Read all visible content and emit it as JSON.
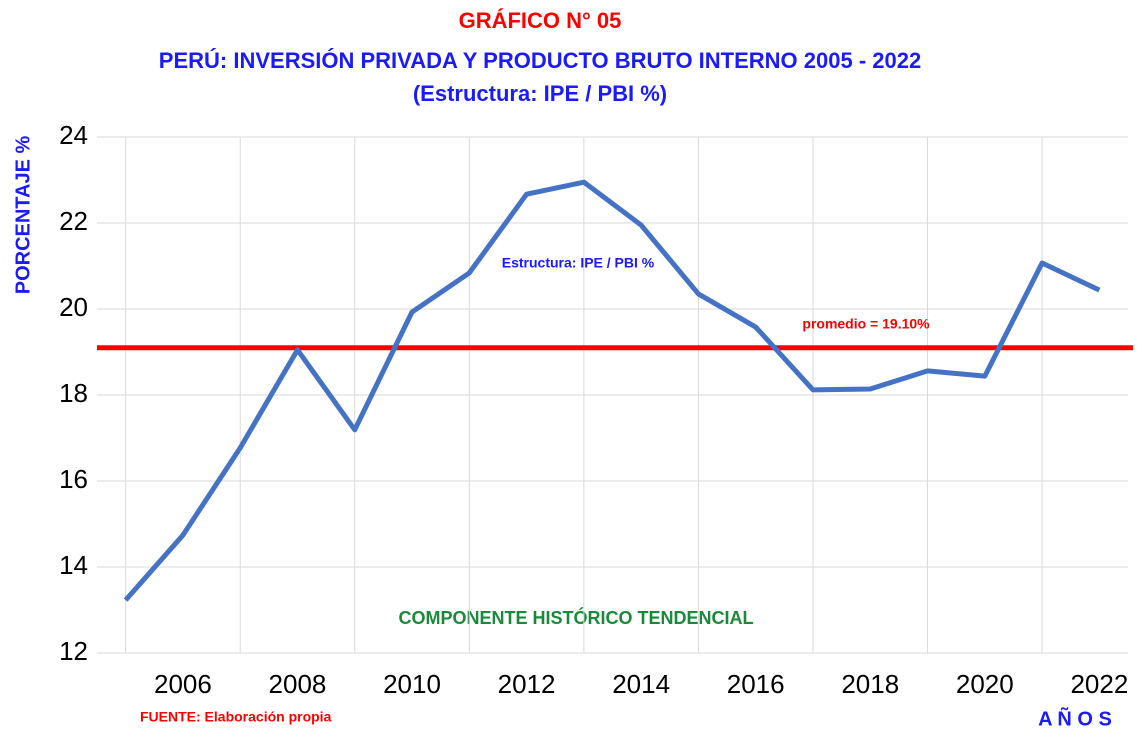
{
  "chart_data": {
    "type": "line",
    "title": "GRÁFICO N° 05",
    "subtitle": [
      "PERÚ: INVERSIÓN PRIVADA Y  PRODUCTO BRUTO INTERNO 2005 - 2022",
      "(Estructura: IPE / PBI %)"
    ],
    "y_label": "PORCENTAJE %",
    "x_label": "A Ñ O S",
    "source": "FUENTE: Elaboración propia",
    "annotation": "COMPONENTE HISTÓRICO TENDENCIAL",
    "x": [
      2005,
      2006,
      2007,
      2008,
      2009,
      2010,
      2011,
      2012,
      2013,
      2014,
      2015,
      2016,
      2017,
      2018,
      2019,
      2020,
      2021,
      2022
    ],
    "series": [
      {
        "name": "Estructura: IPE / PBI %",
        "color": "#4472c4",
        "values": [
          13.23,
          14.74,
          16.77,
          19.05,
          17.19,
          19.93,
          20.84,
          22.67,
          22.95,
          21.95,
          20.35,
          19.58,
          18.12,
          18.14,
          18.56,
          18.44,
          21.07,
          20.44
        ]
      }
    ],
    "average": {
      "value": 19.1,
      "label": "promedio = 19.10%",
      "color": "#ff0000"
    },
    "xlim": [
      2004.5,
      2022.5
    ],
    "xticks": [
      2006,
      2008,
      2010,
      2012,
      2014,
      2016,
      2018,
      2020,
      2022
    ],
    "ylim": [
      12,
      24
    ],
    "yticks": [
      12,
      14,
      16,
      18,
      20,
      22,
      24
    ],
    "grid": true
  }
}
